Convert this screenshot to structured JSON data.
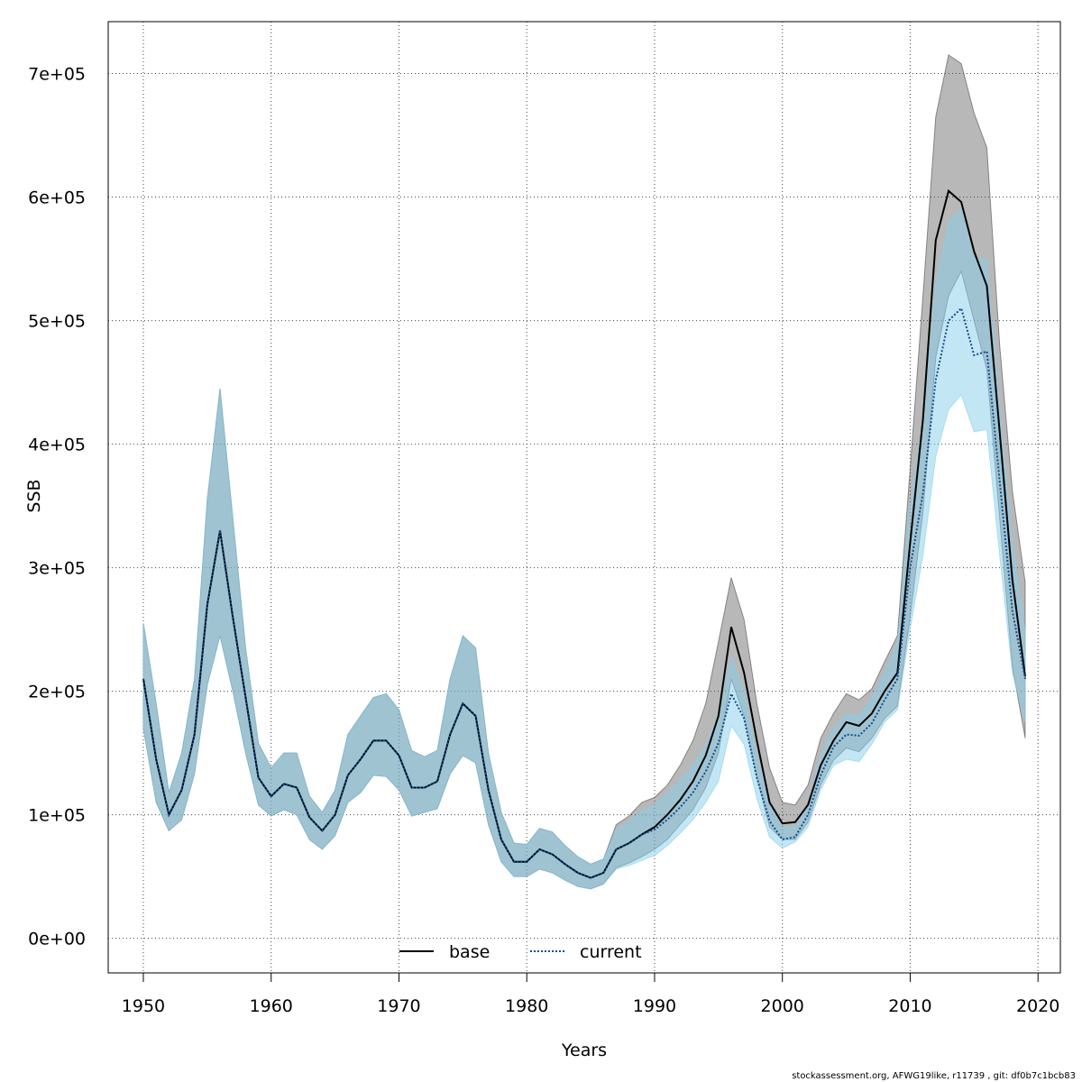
{
  "footer": "stockassessment.org, AFWG19like, r11739 , git: df0b7c1bcb83",
  "colors": {
    "base_band": "#4d4d4d",
    "current_band": "#87ceeb",
    "base_line": "#000000",
    "current_line": "#104e8b"
  },
  "chart_data": {
    "type": "line",
    "xlabel": "Years",
    "ylabel": "SSB",
    "xlim": [
      1947.25,
      2021.75
    ],
    "ylim": [
      -28000,
      742000
    ],
    "x_ticks": [
      1950,
      1960,
      1970,
      1980,
      1990,
      2000,
      2010,
      2020
    ],
    "y_ticks": [
      0,
      100000,
      200000,
      300000,
      400000,
      500000,
      600000,
      700000
    ],
    "x_tick_labels": [
      "1950",
      "1960",
      "1970",
      "1980",
      "1990",
      "2000",
      "2010",
      "2020"
    ],
    "y_tick_labels": [
      "0e+00",
      "1e+05",
      "2e+05",
      "3e+05",
      "4e+05",
      "5e+05",
      "6e+05",
      "7e+05"
    ],
    "grid": true,
    "legend_position": "bottom",
    "legend": [
      "base",
      "current"
    ],
    "x": [
      1950,
      1951,
      1952,
      1953,
      1954,
      1955,
      1956,
      1957,
      1958,
      1959,
      1960,
      1961,
      1962,
      1963,
      1964,
      1965,
      1966,
      1967,
      1968,
      1969,
      1970,
      1971,
      1972,
      1973,
      1974,
      1975,
      1976,
      1977,
      1978,
      1979,
      1980,
      1981,
      1982,
      1983,
      1984,
      1985,
      1986,
      1987,
      1988,
      1989,
      1990,
      1991,
      1992,
      1993,
      1994,
      1995,
      1996,
      1997,
      1998,
      1999,
      2000,
      2001,
      2002,
      2003,
      2004,
      2005,
      2006,
      2007,
      2008,
      2009,
      2010,
      2011,
      2012,
      2013,
      2014,
      2015,
      2016,
      2017,
      2018,
      2019
    ],
    "series": [
      {
        "name": "base",
        "values": [
          210000,
          145000,
          100000,
          120000,
          165000,
          270000,
          330000,
          260000,
          195000,
          130000,
          115000,
          125000,
          122000,
          98000,
          87000,
          100000,
          132000,
          145000,
          160000,
          160000,
          148000,
          122000,
          122000,
          127000,
          165000,
          190000,
          180000,
          120000,
          80000,
          62000,
          62000,
          72000,
          68000,
          60000,
          53000,
          49000,
          53000,
          72000,
          77000,
          84000,
          90000,
          100000,
          112000,
          127000,
          148000,
          180000,
          252000,
          215000,
          160000,
          110000,
          93000,
          94000,
          108000,
          140000,
          160000,
          175000,
          172000,
          182000,
          200000,
          215000,
          320000,
          420000,
          565000,
          605000,
          596000,
          556000,
          528000,
          410000,
          290000,
          212000
        ],
        "lower": [
          170000,
          110000,
          87000,
          96000,
          133000,
          205000,
          245000,
          200000,
          150000,
          108000,
          99000,
          104000,
          100000,
          80000,
          72000,
          83000,
          110000,
          118000,
          132000,
          131000,
          120000,
          99000,
          102000,
          105000,
          133000,
          148000,
          142000,
          92000,
          62000,
          50000,
          50000,
          56000,
          53000,
          47000,
          42000,
          40000,
          44000,
          57000,
          61000,
          66000,
          72000,
          80000,
          92000,
          104000,
          122000,
          150000,
          210000,
          180000,
          130000,
          90000,
          80000,
          80000,
          94000,
          124000,
          144000,
          154000,
          151000,
          162000,
          178000,
          188000,
          260000,
          345000,
          470000,
          520000,
          540000,
          500000,
          460000,
          340000,
          220000,
          162000
        ],
        "upper": [
          255000,
          190000,
          118000,
          150000,
          210000,
          355000,
          445000,
          340000,
          235000,
          158000,
          138000,
          150000,
          150000,
          115000,
          102000,
          120000,
          165000,
          180000,
          195000,
          198000,
          185000,
          152000,
          147000,
          152000,
          210000,
          245000,
          235000,
          150000,
          102000,
          77000,
          76000,
          89000,
          86000,
          75000,
          66000,
          60000,
          64000,
          92000,
          99000,
          110000,
          114000,
          124000,
          140000,
          160000,
          190000,
          240000,
          292000,
          258000,
          190000,
          138000,
          110000,
          108000,
          124000,
          162000,
          182000,
          198000,
          193000,
          202000,
          224000,
          245000,
          380000,
          520000,
          665000,
          715000,
          708000,
          668000,
          640000,
          480000,
          362000,
          288000
        ]
      },
      {
        "name": "current",
        "values": [
          210000,
          145000,
          100000,
          120000,
          165000,
          270000,
          330000,
          260000,
          195000,
          130000,
          115000,
          125000,
          122000,
          98000,
          87000,
          100000,
          132000,
          145000,
          160000,
          160000,
          148000,
          122000,
          122000,
          127000,
          165000,
          190000,
          180000,
          120000,
          80000,
          62000,
          62000,
          72000,
          68000,
          60000,
          53000,
          49000,
          53000,
          72000,
          77000,
          84000,
          88000,
          96000,
          106000,
          118000,
          135000,
          158000,
          198000,
          178000,
          130000,
          95000,
          80000,
          82000,
          100000,
          132000,
          155000,
          165000,
          164000,
          174000,
          193000,
          210000,
          300000,
          360000,
          452000,
          500000,
          510000,
          472000,
          475000,
          370000,
          265000,
          210000
        ],
        "lower": [
          170000,
          110000,
          87000,
          96000,
          133000,
          205000,
          245000,
          200000,
          150000,
          108000,
          99000,
          104000,
          100000,
          80000,
          72000,
          83000,
          110000,
          118000,
          132000,
          131000,
          120000,
          99000,
          102000,
          105000,
          133000,
          148000,
          142000,
          92000,
          62000,
          50000,
          50000,
          56000,
          53000,
          47000,
          42000,
          40000,
          44000,
          56000,
          59000,
          63000,
          67000,
          75000,
          85000,
          96000,
          110000,
          127000,
          172000,
          157000,
          113000,
          82000,
          73000,
          78000,
          90000,
          120000,
          140000,
          145000,
          143000,
          157000,
          175000,
          185000,
          250000,
          310000,
          390000,
          428000,
          440000,
          410000,
          412000,
          310000,
          215000,
          175000
        ],
        "upper": [
          255000,
          190000,
          118000,
          150000,
          210000,
          355000,
          445000,
          340000,
          235000,
          158000,
          138000,
          150000,
          150000,
          115000,
          102000,
          120000,
          165000,
          180000,
          195000,
          198000,
          185000,
          152000,
          147000,
          152000,
          210000,
          245000,
          235000,
          150000,
          102000,
          77000,
          76000,
          89000,
          86000,
          75000,
          66000,
          60000,
          64000,
          88000,
          95000,
          103000,
          108000,
          117000,
          128000,
          140000,
          156000,
          180000,
          228000,
          200000,
          148000,
          108000,
          90000,
          90000,
          108000,
          148000,
          170000,
          182000,
          180000,
          195000,
          215000,
          240000,
          350000,
          420000,
          530000,
          580000,
          590000,
          550000,
          550000,
          430000,
          320000,
          250000
        ]
      }
    ]
  }
}
